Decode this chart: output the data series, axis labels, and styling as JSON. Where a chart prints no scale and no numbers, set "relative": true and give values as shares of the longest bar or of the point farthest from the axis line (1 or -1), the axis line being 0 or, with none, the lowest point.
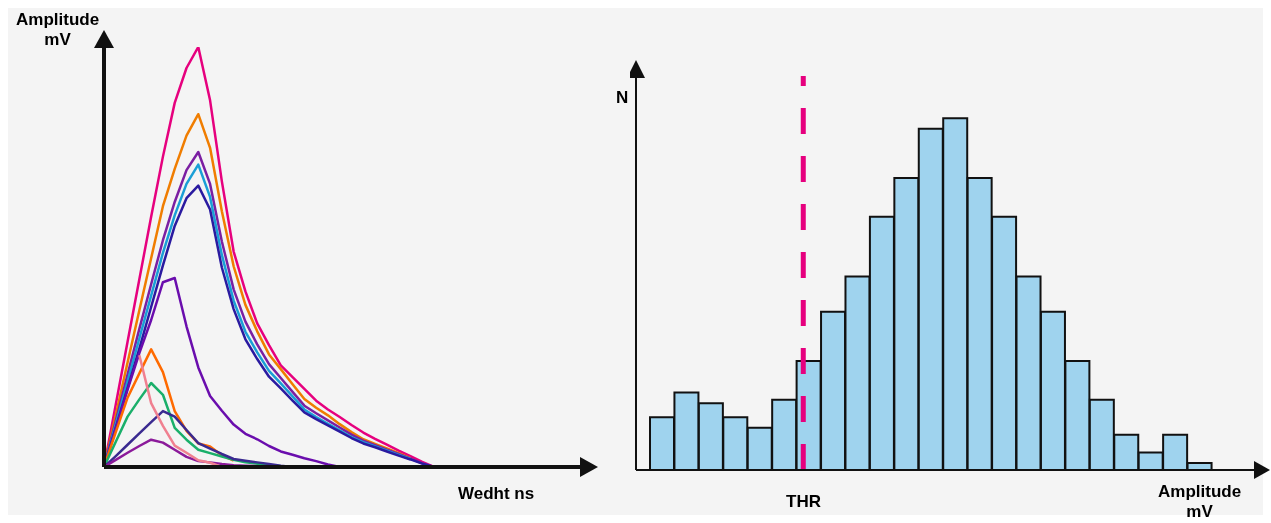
{
  "chart_data": [
    {
      "type": "line",
      "relative": true,
      "xlabel": "Wedht ns",
      "ylabel": "Amplitude\nmV",
      "marker": "none",
      "line_style": "solid",
      "categories": [
        null,
        null,
        null,
        null,
        null,
        null,
        null,
        null,
        null,
        null,
        null,
        null,
        null,
        null,
        null,
        null,
        null,
        null,
        null,
        null,
        null,
        null,
        null,
        null,
        null,
        null,
        null,
        null,
        null
      ],
      "series": [
        {
          "color": "#e6007e",
          "values": [
            0,
            0.149,
            0.298,
            0.447,
            0.596,
            0.739,
            0.867,
            0.95,
            1,
            0.873,
            0.68,
            0.513,
            0.418,
            0.342,
            0.29,
            0.242,
            0.214,
            0.186,
            0.158,
            0.137,
            0.119,
            0.1,
            0.082,
            0.067,
            0.053,
            0.039,
            0.026,
            0.012,
            0
          ]
        },
        {
          "color": "#f07d00",
          "values": [
            0,
            0.124,
            0.249,
            0.373,
            0.497,
            0.621,
            0.71,
            0.789,
            0.84,
            0.76,
            0.609,
            0.478,
            0.386,
            0.323,
            0.268,
            0.233,
            0.197,
            0.162,
            0.141,
            0.123,
            0.102,
            0.083,
            0.066,
            0.055,
            0.044,
            0.033,
            0.021,
            null,
            null
          ]
        },
        {
          "color": "#7b1fa2",
          "values": [
            0,
            0.11,
            0.22,
            0.329,
            0.435,
            0.54,
            0.631,
            0.707,
            0.75,
            0.674,
            0.537,
            0.423,
            0.346,
            0.292,
            0.245,
            0.212,
            0.179,
            0.146,
            0.128,
            0.111,
            0.094,
            0.077,
            0.063,
            0.052,
            0.041,
            0.031,
            0.02,
            0.009,
            0
          ]
        },
        {
          "color": "#1a9fd6",
          "values": [
            0,
            0.102,
            0.204,
            0.306,
            0.408,
            0.51,
            0.599,
            0.674,
            0.72,
            0.643,
            0.505,
            0.396,
            0.322,
            0.273,
            0.229,
            0.199,
            0.168,
            0.137,
            0.119,
            0.103,
            0.087,
            0.071,
            0.059,
            0.049,
            0.039,
            0.029,
            0.019,
            null,
            null
          ]
        },
        {
          "color": "#2a1aa0",
          "values": [
            0,
            0.094,
            0.188,
            0.282,
            0.381,
            0.48,
            0.574,
            0.64,
            0.67,
            0.613,
            0.475,
            0.376,
            0.304,
            0.257,
            0.215,
            0.187,
            0.158,
            0.13,
            0.114,
            0.099,
            0.084,
            0.069,
            0.056,
            0.047,
            0.037,
            0.027,
            0.018,
            0.008,
            0
          ]
        },
        {
          "color": "#6a0dad",
          "values": [
            0,
            0.092,
            0.184,
            0.271,
            0.35,
            0.44,
            0.45,
            0.335,
            0.237,
            0.169,
            0.134,
            0.101,
            0.079,
            0.066,
            0.05,
            0.037,
            0.029,
            0.021,
            0.014,
            0.006,
            0,
            null,
            null,
            null,
            null,
            null,
            null,
            null,
            null
          ]
        },
        {
          "color": "#ff6a00",
          "values": [
            0,
            0.083,
            0.165,
            0.223,
            0.28,
            0.226,
            0.133,
            0.086,
            0.056,
            0.049,
            0.028,
            0.015,
            null,
            null,
            null,
            null,
            null,
            null,
            null,
            null,
            null,
            null,
            null,
            null,
            null,
            null,
            null,
            null,
            null
          ]
        },
        {
          "color": "#1aaf6a",
          "values": [
            0,
            0.06,
            0.12,
            0.161,
            0.2,
            0.172,
            0.093,
            0.065,
            0.041,
            0.033,
            0.025,
            0.017,
            0.011,
            0.008,
            0.005,
            0.002,
            0,
            null,
            null,
            null,
            null,
            null,
            null,
            null,
            null,
            null,
            null,
            null,
            null
          ]
        },
        {
          "color": "#3a2a90",
          "values": [
            0,
            0.026,
            0.053,
            0.08,
            0.107,
            0.133,
            0.12,
            0.088,
            0.057,
            0.044,
            0.031,
            0.019,
            0.015,
            0.011,
            0.007,
            0.003,
            0,
            null,
            null,
            null,
            null,
            null,
            null,
            null,
            null,
            null,
            null,
            null,
            null
          ]
        },
        {
          "color": "#8b1a9a",
          "values": [
            0,
            0.017,
            0.034,
            0.05,
            0.065,
            0.058,
            0.041,
            0.024,
            0.014,
            0.011,
            0.007,
            0.004,
            0.003,
            0.002,
            0.001,
            null,
            null,
            null,
            null,
            null,
            null,
            null,
            null,
            null,
            null,
            null,
            null,
            null,
            null
          ]
        },
        {
          "color": "#f08090",
          "values": [
            null,
            null,
            null,
            0.266,
            0.152,
            0.098,
            0.051,
            0.034,
            0.016,
            0.01,
            0,
            null,
            null,
            null,
            null,
            null,
            null,
            null,
            null,
            null,
            null,
            null,
            null,
            null,
            null,
            null,
            null,
            null,
            null
          ]
        }
      ]
    },
    {
      "type": "bar",
      "relative": true,
      "xlabel": "Amplitude\nmV",
      "ylabel": "N",
      "color": "#9fd3ee",
      "categories": [
        null,
        null,
        null,
        null,
        null,
        null,
        null,
        null,
        null,
        null,
        null,
        null,
        null,
        null,
        null,
        null,
        null,
        null,
        null,
        null,
        null,
        null,
        null
      ],
      "values": [
        0.15,
        0.22,
        0.19,
        0.15,
        0.12,
        0.2,
        0.31,
        0.45,
        0.55,
        0.72,
        0.83,
        0.97,
        1,
        0.83,
        0.72,
        0.55,
        0.45,
        0.31,
        0.2,
        0.1,
        0.05,
        0.1,
        0.02
      ],
      "annotations": [
        "THR"
      ]
    }
  ]
}
